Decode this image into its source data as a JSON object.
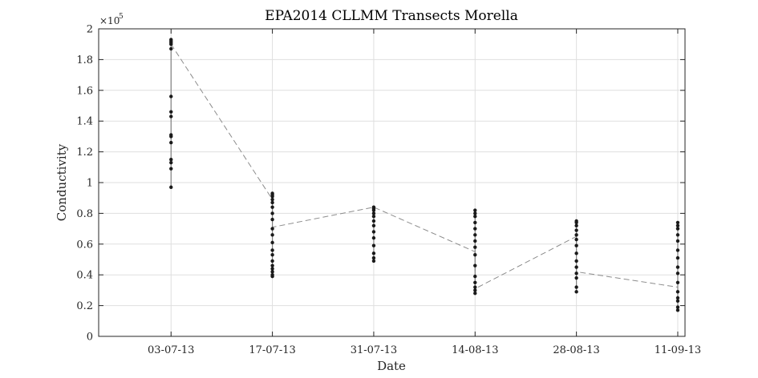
{
  "chart_data": {
    "type": "scatter",
    "title": "EPA2014 CLLMM Transects Morella",
    "xlabel": "Date",
    "ylabel": "Conductivity",
    "y_exponent_label": "×10^5",
    "y_exponent_text": "×10",
    "y_exponent_power": "5",
    "ylim": [
      0,
      200000
    ],
    "xlim": [
      "2013-06-23",
      "2013-09-12"
    ],
    "grid": true,
    "y_ticks": [
      {
        "value": 0,
        "label": "0"
      },
      {
        "value": 20000,
        "label": "0.2"
      },
      {
        "value": 40000,
        "label": "0.4"
      },
      {
        "value": 60000,
        "label": "0.6"
      },
      {
        "value": 80000,
        "label": "0.8"
      },
      {
        "value": 100000,
        "label": "1"
      },
      {
        "value": 120000,
        "label": "1.2"
      },
      {
        "value": 140000,
        "label": "1.4"
      },
      {
        "value": 160000,
        "label": "1.6"
      },
      {
        "value": 180000,
        "label": "1.8"
      },
      {
        "value": 200000,
        "label": "2"
      }
    ],
    "x_ticks": [
      {
        "value": "2013-07-03",
        "label": "03-07-13"
      },
      {
        "value": "2013-07-17",
        "label": "17-07-13"
      },
      {
        "value": "2013-07-31",
        "label": "31-07-13"
      },
      {
        "value": "2013-08-14",
        "label": "14-08-13"
      },
      {
        "value": "2013-08-28",
        "label": "28-08-13"
      },
      {
        "value": "2013-09-11",
        "label": "11-09-13"
      }
    ],
    "series": [
      {
        "style": "black dots with grey vertical line",
        "color": "#1a1a1a",
        "groups": [
          {
            "x": "2013-07-03",
            "y": [
              97000,
              109000,
              113000,
              115000,
              126000,
              130000,
              131000,
              143000,
              146000,
              156000,
              187000,
              190000,
              191000,
              192000,
              193000
            ]
          },
          {
            "x": "2013-07-17",
            "y": [
              39000,
              40000,
              42000,
              44000,
              46000,
              49000,
              53000,
              56000,
              61000,
              66000,
              70000,
              76000,
              80000,
              84000,
              87000,
              89000,
              91000,
              92000,
              93000
            ]
          },
          {
            "x": "2013-07-31",
            "y": [
              49000,
              51000,
              54000,
              59000,
              64000,
              68000,
              72000,
              75000,
              78000,
              80000,
              82000,
              83000,
              84000
            ]
          },
          {
            "x": "2013-08-14",
            "y": [
              28000,
              30000,
              32000,
              35000,
              39000,
              46000,
              53000,
              58000,
              62000,
              66000,
              70000,
              74000,
              78000,
              80000,
              82000
            ]
          },
          {
            "x": "2013-08-28",
            "y": [
              29000,
              32000,
              38000,
              41000,
              45000,
              49000,
              54000,
              59000,
              63000,
              66000,
              69000,
              72000,
              74000,
              75000
            ]
          },
          {
            "x": "2013-09-11",
            "y": [
              17000,
              19000,
              23000,
              25000,
              29000,
              35000,
              41000,
              45000,
              51000,
              56000,
              62000,
              66000,
              70000,
              72000,
              74000
            ]
          }
        ]
      },
      {
        "style": "grey dashed line",
        "color": "#8c8c8c",
        "points": [
          {
            "x": "2013-07-03",
            "y": 190000
          },
          {
            "x": "2013-07-17",
            "y": 89000
          },
          {
            "x": "2013-07-17",
            "y": 71000
          },
          {
            "x": "2013-07-31",
            "y": 84000
          },
          {
            "x": "2013-08-14",
            "y": 55000
          },
          {
            "x": "2013-08-14",
            "y": 31000
          },
          {
            "x": "2013-08-28",
            "y": 65000
          },
          {
            "x": "2013-08-28",
            "y": 42000
          },
          {
            "x": "2013-09-11",
            "y": 32000
          },
          {
            "x": "2013-09-11",
            "y": 67000
          }
        ]
      }
    ]
  }
}
